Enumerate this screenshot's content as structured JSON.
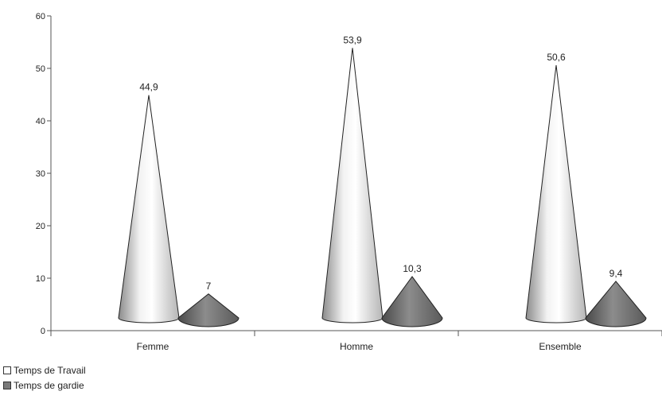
{
  "chart_data": {
    "type": "bar",
    "categories": [
      "Femme",
      "Homme",
      "Ensemble"
    ],
    "series": [
      {
        "name": "Temps de Travail",
        "values": [
          44.9,
          53.9,
          50.6
        ],
        "labels": [
          "44,9",
          "53,9",
          "50,6"
        ],
        "color": "#d8d8d8"
      },
      {
        "name": "Temps de gardie",
        "values": [
          7,
          10.3,
          9.4
        ],
        "labels": [
          "7",
          "10,3",
          "9,4"
        ],
        "color": "#7a7a7a"
      }
    ],
    "ylim": [
      0,
      60
    ],
    "yticks": [
      0,
      10,
      20,
      30,
      40,
      50,
      60
    ],
    "bar_shape": "cone",
    "legend_position": "bottom-left"
  }
}
